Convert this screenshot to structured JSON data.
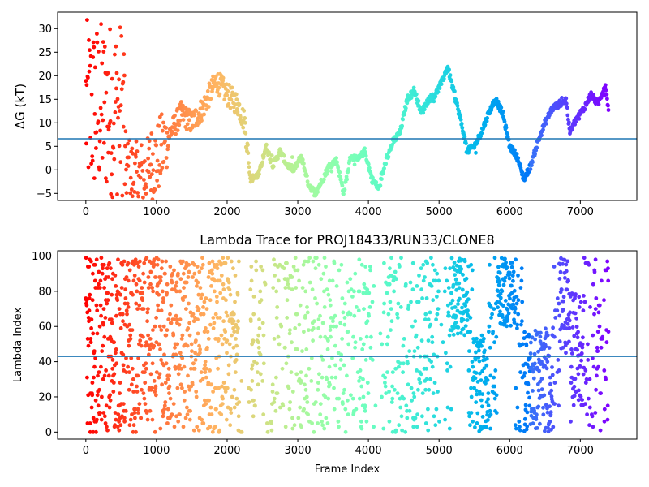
{
  "chart_data": [
    {
      "type": "scatter",
      "title": "",
      "xlabel": "",
      "ylabel": "ΔG (kT)",
      "xlim": [
        -400,
        7800
      ],
      "ylim": [
        -6.5,
        33.5
      ],
      "xticks": [
        0,
        1000,
        2000,
        3000,
        4000,
        5000,
        6000,
        7000
      ],
      "yticks": [
        -5,
        0,
        5,
        10,
        15,
        20,
        25,
        30
      ],
      "x_tick_labels": [
        "0",
        "1000",
        "2000",
        "3000",
        "4000",
        "5000",
        "6000",
        "7000"
      ],
      "y_tick_labels": [
        "−5",
        "0",
        "5",
        "10",
        "15",
        "20",
        "25",
        "30"
      ],
      "hline": 6.6,
      "hline_color": "#1f77b4",
      "colormap": "rainbow (red at frame 0 → violet at last frame)",
      "x_range": [
        0,
        7400
      ],
      "series_shape": [
        [
          0,
          20
        ],
        [
          150,
          5
        ],
        [
          400,
          5
        ],
        [
          700,
          0
        ],
        [
          1000,
          2
        ],
        [
          1200,
          8
        ],
        [
          1350,
          12
        ],
        [
          1500,
          10
        ],
        [
          1650,
          13
        ],
        [
          1850,
          19
        ],
        [
          2000,
          16
        ],
        [
          2150,
          14
        ],
        [
          2250,
          10
        ],
        [
          2330,
          -2
        ],
        [
          2450,
          -1
        ],
        [
          2550,
          5
        ],
        [
          2650,
          1
        ],
        [
          2750,
          4
        ],
        [
          2850,
          1
        ],
        [
          2950,
          0
        ],
        [
          3050,
          3
        ],
        [
          3150,
          -3
        ],
        [
          3250,
          -5
        ],
        [
          3350,
          -2
        ],
        [
          3450,
          1
        ],
        [
          3550,
          2
        ],
        [
          3650,
          -5
        ],
        [
          3750,
          3
        ],
        [
          3850,
          2
        ],
        [
          3950,
          4
        ],
        [
          4050,
          -2
        ],
        [
          4150,
          -4
        ],
        [
          4250,
          2
        ],
        [
          4350,
          6
        ],
        [
          4450,
          8
        ],
        [
          4550,
          15
        ],
        [
          4650,
          17
        ],
        [
          4750,
          12
        ],
        [
          4850,
          15
        ],
        [
          4950,
          16
        ],
        [
          5050,
          19
        ],
        [
          5120,
          22
        ],
        [
          5200,
          17
        ],
        [
          5300,
          11
        ],
        [
          5400,
          4
        ],
        [
          5500,
          5
        ],
        [
          5600,
          8
        ],
        [
          5700,
          12
        ],
        [
          5800,
          15
        ],
        [
          5900,
          12
        ],
        [
          6000,
          5
        ],
        [
          6100,
          3
        ],
        [
          6200,
          -2
        ],
        [
          6300,
          1
        ],
        [
          6400,
          6
        ],
        [
          6500,
          10
        ],
        [
          6600,
          13
        ],
        [
          6700,
          14
        ],
        [
          6800,
          15
        ],
        [
          6850,
          8
        ],
        [
          6950,
          11
        ],
        [
          7050,
          13
        ],
        [
          7150,
          16
        ],
        [
          7250,
          14
        ],
        [
          7350,
          18
        ],
        [
          7400,
          13
        ]
      ]
    },
    {
      "type": "scatter",
      "title": "Lambda Trace for PROJ18433/RUN33/CLONE8",
      "xlabel": "Frame Index",
      "ylabel": "Lambda Index",
      "xlim": [
        -400,
        7800
      ],
      "ylim": [
        -4,
        103
      ],
      "xticks": [
        0,
        1000,
        2000,
        3000,
        4000,
        5000,
        6000,
        7000
      ],
      "yticks": [
        0,
        20,
        40,
        60,
        80,
        100
      ],
      "x_tick_labels": [
        "0",
        "1000",
        "2000",
        "3000",
        "4000",
        "5000",
        "6000",
        "7000"
      ],
      "y_tick_labels": [
        "0",
        "20",
        "40",
        "60",
        "80",
        "100"
      ],
      "hline": 43,
      "hline_color": "#1f77b4",
      "colormap": "rainbow (red at frame 0 → violet at last frame)",
      "x_range": [
        0,
        7400
      ],
      "lambda_range": [
        0,
        99
      ]
    }
  ]
}
